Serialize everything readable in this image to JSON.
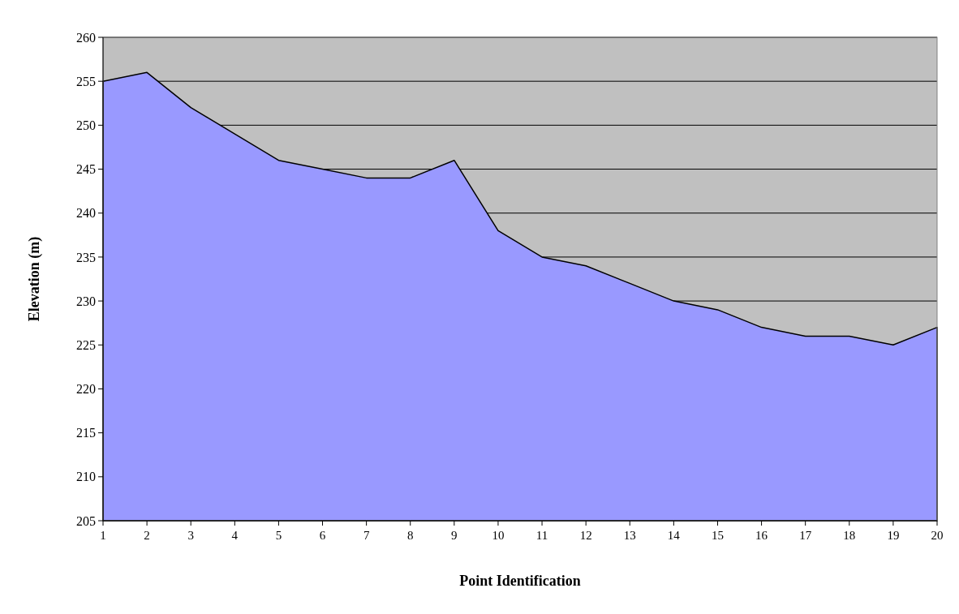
{
  "chart_data": {
    "type": "area",
    "xlabel": "Point Identification",
    "ylabel": "Elevation (m)",
    "x": [
      1,
      2,
      3,
      4,
      5,
      6,
      7,
      8,
      9,
      10,
      11,
      12,
      13,
      14,
      15,
      16,
      17,
      18,
      19,
      20
    ],
    "series": [
      {
        "color": "#9999ff",
        "values": [
          255,
          256,
          252,
          249,
          246,
          245,
          244,
          244,
          246,
          238,
          235,
          234,
          232,
          230,
          229,
          227,
          226,
          226,
          225,
          227
        ]
      }
    ],
    "xlim": [
      1,
      20
    ],
    "xticks": [
      1,
      2,
      3,
      4,
      5,
      6,
      7,
      8,
      9,
      10,
      11,
      12,
      13,
      14,
      15,
      16,
      17,
      18,
      19,
      20
    ],
    "ylim": [
      205,
      260
    ],
    "yticks": [
      205,
      210,
      215,
      220,
      225,
      230,
      235,
      240,
      245,
      250,
      255,
      260
    ],
    "grid": "y"
  }
}
